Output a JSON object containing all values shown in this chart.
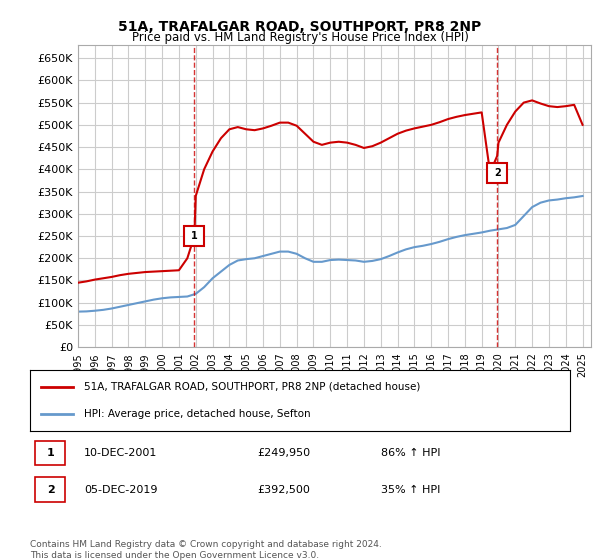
{
  "title": "51A, TRAFALGAR ROAD, SOUTHPORT, PR8 2NP",
  "subtitle": "Price paid vs. HM Land Registry's House Price Index (HPI)",
  "ylabel_ticks": [
    0,
    50000,
    100000,
    150000,
    200000,
    250000,
    300000,
    350000,
    400000,
    450000,
    500000,
    550000,
    600000,
    650000
  ],
  "ylim": [
    0,
    680000
  ],
  "xlim_start": 1995.0,
  "xlim_end": 2025.5,
  "red_line_color": "#cc0000",
  "blue_line_color": "#6699cc",
  "marker_color": "#cc0000",
  "grid_color": "#cccccc",
  "background_color": "#ffffff",
  "transaction1_x": 2001.92,
  "transaction1_y": 249950,
  "transaction1_label": "1",
  "transaction2_x": 2019.92,
  "transaction2_y": 392500,
  "transaction2_label": "2",
  "legend_line1": "51A, TRAFALGAR ROAD, SOUTHPORT, PR8 2NP (detached house)",
  "legend_line2": "HPI: Average price, detached house, Sefton",
  "table_row1_num": "1",
  "table_row1_date": "10-DEC-2001",
  "table_row1_price": "£249,950",
  "table_row1_hpi": "86% ↑ HPI",
  "table_row2_num": "2",
  "table_row2_date": "05-DEC-2019",
  "table_row2_price": "£392,500",
  "table_row2_hpi": "35% ↑ HPI",
  "footer": "Contains HM Land Registry data © Crown copyright and database right 2024.\nThis data is licensed under the Open Government Licence v3.0.",
  "hpi_years": [
    1995,
    1995.5,
    1996,
    1996.5,
    1997,
    1997.5,
    1998,
    1998.5,
    1999,
    1999.5,
    2000,
    2000.5,
    2001,
    2001.5,
    2002,
    2002.5,
    2003,
    2003.5,
    2004,
    2004.5,
    2005,
    2005.5,
    2006,
    2006.5,
    2007,
    2007.5,
    2008,
    2008.5,
    2009,
    2009.5,
    2010,
    2010.5,
    2011,
    2011.5,
    2012,
    2012.5,
    2013,
    2013.5,
    2014,
    2014.5,
    2015,
    2015.5,
    2016,
    2016.5,
    2017,
    2017.5,
    2018,
    2018.5,
    2019,
    2019.5,
    2020,
    2020.5,
    2021,
    2021.5,
    2022,
    2022.5,
    2023,
    2023.5,
    2024,
    2024.5,
    2025
  ],
  "hpi_values": [
    80000,
    80500,
    82000,
    84000,
    87000,
    91000,
    95000,
    99000,
    103000,
    107000,
    110000,
    112000,
    113000,
    114000,
    120000,
    135000,
    155000,
    170000,
    185000,
    195000,
    198000,
    200000,
    205000,
    210000,
    215000,
    215000,
    210000,
    200000,
    192000,
    192000,
    196000,
    197000,
    196000,
    195000,
    192000,
    194000,
    198000,
    205000,
    213000,
    220000,
    225000,
    228000,
    232000,
    237000,
    243000,
    248000,
    252000,
    255000,
    258000,
    262000,
    265000,
    268000,
    275000,
    295000,
    315000,
    325000,
    330000,
    332000,
    335000,
    337000,
    340000
  ],
  "price_years": [
    1995,
    1995.5,
    1996,
    1996.5,
    1997,
    1997.5,
    1998,
    1998.5,
    1999,
    1999.5,
    2000,
    2000.5,
    2001,
    2001.5,
    2001.92,
    2002,
    2002.5,
    2003,
    2003.5,
    2004,
    2004.5,
    2005,
    2005.5,
    2006,
    2006.5,
    2007,
    2007.5,
    2008,
    2008.5,
    2009,
    2009.5,
    2010,
    2010.5,
    2011,
    2011.5,
    2012,
    2012.5,
    2013,
    2013.5,
    2014,
    2014.5,
    2015,
    2015.5,
    2016,
    2016.5,
    2017,
    2017.5,
    2018,
    2018.5,
    2019,
    2019.5,
    2019.92,
    2020,
    2020.5,
    2021,
    2021.5,
    2022,
    2022.5,
    2023,
    2023.5,
    2024,
    2024.5,
    2025
  ],
  "price_values": [
    145000,
    148000,
    152000,
    155000,
    158000,
    162000,
    165000,
    167000,
    169000,
    170000,
    171000,
    172000,
    173000,
    200000,
    249950,
    340000,
    400000,
    440000,
    470000,
    490000,
    495000,
    490000,
    488000,
    492000,
    498000,
    505000,
    505000,
    498000,
    480000,
    462000,
    455000,
    460000,
    462000,
    460000,
    455000,
    448000,
    452000,
    460000,
    470000,
    480000,
    487000,
    492000,
    496000,
    500000,
    506000,
    513000,
    518000,
    522000,
    525000,
    528000,
    392500,
    430000,
    460000,
    500000,
    530000,
    550000,
    555000,
    548000,
    542000,
    540000,
    542000,
    545000,
    500000
  ]
}
